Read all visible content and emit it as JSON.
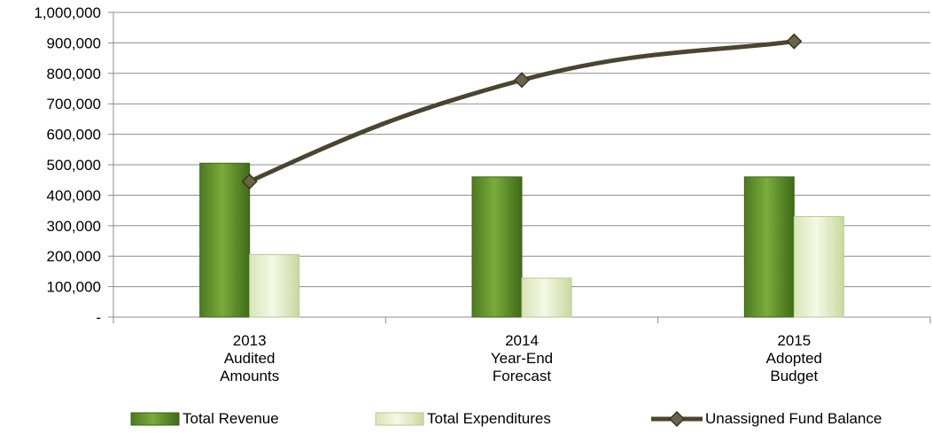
{
  "chart_data": {
    "type": "bar",
    "categories": [
      [
        "2013",
        "Audited",
        "Amounts"
      ],
      [
        "2014",
        "Year-End",
        "Forecast"
      ],
      [
        "2015",
        "Adopted",
        "Budget"
      ]
    ],
    "y_tick_labels": [
      "-",
      "100,000",
      "200,000",
      "300,000",
      "400,000",
      "500,000",
      "600,000",
      "700,000",
      "800,000",
      "900,000",
      "1,000,000"
    ],
    "ylim": [
      0,
      1000000
    ],
    "ytick_step": 100000,
    "grid": true,
    "legend_position": "bottom",
    "series": [
      {
        "name": "Total Revenue",
        "kind": "bar",
        "values": [
          505000,
          460000,
          460000
        ],
        "color": "#5a8a2a"
      },
      {
        "name": "Total Expenditures",
        "kind": "bar",
        "values": [
          205000,
          128000,
          330000
        ],
        "color": "#e6efce"
      },
      {
        "name": "Unassigned Fund Balance",
        "kind": "line",
        "values": [
          445000,
          778000,
          905000
        ],
        "color": "#4a4530"
      }
    ]
  }
}
